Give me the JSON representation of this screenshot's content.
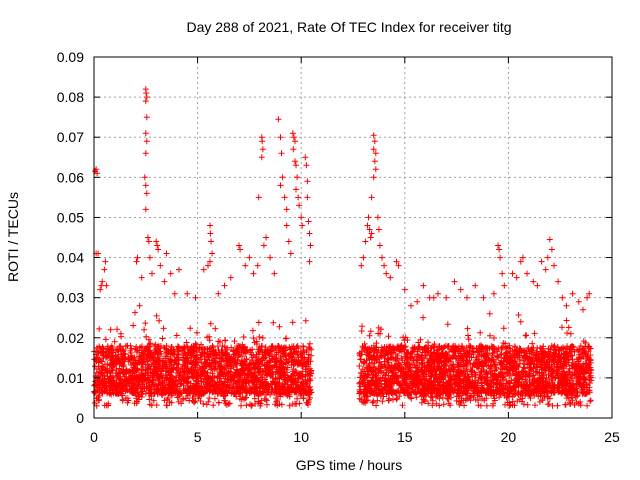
{
  "chart_data": {
    "type": "scatter",
    "title": "Day 288 of 2021, Rate Of TEC Index for receiver titg",
    "xlabel": "GPS time / hours",
    "ylabel": "ROTI / TECUs",
    "xlim": [
      0,
      25
    ],
    "ylim": [
      0,
      0.09
    ],
    "xticks": [
      0,
      5,
      10,
      15,
      20,
      25
    ],
    "yticks": [
      0,
      0.01,
      0.02,
      0.03,
      0.04,
      0.05,
      0.06,
      0.07,
      0.08,
      0.09
    ],
    "xtick_labels": [
      "0",
      "5",
      "10",
      "15",
      "20",
      "25"
    ],
    "ytick_labels": [
      "0",
      "0.01",
      "0.02",
      "0.03",
      "0.04",
      "0.05",
      "0.06",
      "0.07",
      "0.08",
      "0.09"
    ],
    "grid": true,
    "marker": "+",
    "color": "#ff0000",
    "series": [
      {
        "segments": [
          [
            0,
            10.5
          ],
          [
            12.8,
            24
          ]
        ],
        "band": {
          "base_low": 0.006,
          "base_high": 0.018,
          "floor": 0.003
        },
        "points": [
          [
            0.05,
            0.0615
          ],
          [
            0.1,
            0.062
          ],
          [
            0.15,
            0.061
          ],
          [
            0.1,
            0.041
          ],
          [
            0.2,
            0.041
          ],
          [
            0.3,
            0.032
          ],
          [
            0.35,
            0.033
          ],
          [
            0.4,
            0.034
          ],
          [
            0.5,
            0.037
          ],
          [
            0.55,
            0.039
          ],
          [
            0.6,
            0.033
          ],
          [
            0.8,
            0.022
          ],
          [
            1.0,
            0.019
          ],
          [
            1.3,
            0.021
          ],
          [
            1.6,
            0.018
          ],
          [
            2.05,
            0.039
          ],
          [
            2.1,
            0.04
          ],
          [
            2.2,
            0.028
          ],
          [
            2.3,
            0.035
          ],
          [
            2.5,
            0.082
          ],
          [
            2.52,
            0.081
          ],
          [
            2.55,
            0.08
          ],
          [
            2.5,
            0.079
          ],
          [
            2.55,
            0.075
          ],
          [
            2.5,
            0.071
          ],
          [
            2.55,
            0.069
          ],
          [
            2.5,
            0.066
          ],
          [
            2.45,
            0.06
          ],
          [
            2.5,
            0.058
          ],
          [
            2.55,
            0.056
          ],
          [
            2.5,
            0.052
          ],
          [
            2.6,
            0.045
          ],
          [
            2.65,
            0.044
          ],
          [
            2.7,
            0.04
          ],
          [
            2.8,
            0.036
          ],
          [
            3.0,
            0.044
          ],
          [
            3.05,
            0.043
          ],
          [
            3.1,
            0.042
          ],
          [
            3.2,
            0.038
          ],
          [
            3.4,
            0.034
          ],
          [
            3.5,
            0.041
          ],
          [
            3.7,
            0.036
          ],
          [
            3.9,
            0.031
          ],
          [
            4.1,
            0.037
          ],
          [
            4.5,
            0.031
          ],
          [
            4.9,
            0.03
          ],
          [
            5.3,
            0.037
          ],
          [
            5.5,
            0.038
          ],
          [
            5.6,
            0.048
          ],
          [
            5.62,
            0.046
          ],
          [
            5.65,
            0.044
          ],
          [
            5.7,
            0.041
          ],
          [
            5.6,
            0.039
          ],
          [
            6.0,
            0.031
          ],
          [
            6.3,
            0.033
          ],
          [
            6.6,
            0.035
          ],
          [
            7.0,
            0.043
          ],
          [
            7.05,
            0.042
          ],
          [
            7.3,
            0.038
          ],
          [
            7.5,
            0.04
          ],
          [
            7.7,
            0.036
          ],
          [
            7.9,
            0.038
          ],
          [
            7.95,
            0.055
          ],
          [
            8.1,
            0.07
          ],
          [
            8.12,
            0.069
          ],
          [
            8.15,
            0.067
          ],
          [
            8.1,
            0.065
          ],
          [
            8.2,
            0.043
          ],
          [
            8.3,
            0.045
          ],
          [
            8.5,
            0.04
          ],
          [
            8.7,
            0.036
          ],
          [
            8.9,
            0.0745
          ],
          [
            9.0,
            0.07
          ],
          [
            9.05,
            0.066
          ],
          [
            9.1,
            0.06
          ],
          [
            9.0,
            0.058
          ],
          [
            9.2,
            0.055
          ],
          [
            9.3,
            0.052
          ],
          [
            9.3,
            0.048
          ],
          [
            9.4,
            0.044
          ],
          [
            9.5,
            0.041
          ],
          [
            9.6,
            0.071
          ],
          [
            9.65,
            0.07
          ],
          [
            9.7,
            0.069
          ],
          [
            9.62,
            0.067
          ],
          [
            9.7,
            0.064
          ],
          [
            9.75,
            0.063
          ],
          [
            9.8,
            0.06
          ],
          [
            9.75,
            0.057
          ],
          [
            9.85,
            0.055
          ],
          [
            9.9,
            0.053
          ],
          [
            10.0,
            0.05
          ],
          [
            10.05,
            0.048
          ],
          [
            10.2,
            0.065
          ],
          [
            10.25,
            0.063
          ],
          [
            10.3,
            0.059
          ],
          [
            10.3,
            0.055
          ],
          [
            10.35,
            0.049
          ],
          [
            10.4,
            0.046
          ],
          [
            10.45,
            0.043
          ],
          [
            10.4,
            0.039
          ],
          [
            12.9,
            0.038
          ],
          [
            13.0,
            0.04
          ],
          [
            13.1,
            0.044
          ],
          [
            13.2,
            0.048
          ],
          [
            13.25,
            0.05
          ],
          [
            13.3,
            0.047
          ],
          [
            13.35,
            0.045
          ],
          [
            13.4,
            0.046
          ],
          [
            13.4,
            0.055
          ],
          [
            13.5,
            0.0705
          ],
          [
            13.55,
            0.069
          ],
          [
            13.5,
            0.067
          ],
          [
            13.6,
            0.066
          ],
          [
            13.55,
            0.064
          ],
          [
            13.6,
            0.062
          ],
          [
            13.5,
            0.06
          ],
          [
            13.7,
            0.05
          ],
          [
            13.75,
            0.047
          ],
          [
            13.8,
            0.043
          ],
          [
            13.9,
            0.04
          ],
          [
            14.0,
            0.038
          ],
          [
            14.1,
            0.036
          ],
          [
            14.3,
            0.035
          ],
          [
            14.6,
            0.039
          ],
          [
            14.7,
            0.038
          ],
          [
            15.0,
            0.032
          ],
          [
            15.3,
            0.028
          ],
          [
            15.6,
            0.029
          ],
          [
            15.9,
            0.033
          ],
          [
            16.2,
            0.03
          ],
          [
            16.4,
            0.03
          ],
          [
            16.6,
            0.031
          ],
          [
            17.0,
            0.03
          ],
          [
            17.4,
            0.034
          ],
          [
            17.7,
            0.032
          ],
          [
            18.0,
            0.03
          ],
          [
            18.4,
            0.033
          ],
          [
            18.8,
            0.03
          ],
          [
            19.1,
            0.026
          ],
          [
            19.3,
            0.031
          ],
          [
            19.5,
            0.043
          ],
          [
            19.55,
            0.042
          ],
          [
            19.6,
            0.04
          ],
          [
            19.7,
            0.036
          ],
          [
            19.8,
            0.033
          ],
          [
            20.2,
            0.036
          ],
          [
            20.4,
            0.035
          ],
          [
            20.6,
            0.039
          ],
          [
            20.7,
            0.04
          ],
          [
            20.9,
            0.036
          ],
          [
            21.2,
            0.034
          ],
          [
            21.4,
            0.033
          ],
          [
            21.6,
            0.039
          ],
          [
            21.8,
            0.037
          ],
          [
            21.9,
            0.04
          ],
          [
            22.0,
            0.0445
          ],
          [
            22.1,
            0.042
          ],
          [
            22.2,
            0.038
          ],
          [
            22.4,
            0.034
          ],
          [
            22.6,
            0.03
          ],
          [
            22.8,
            0.028
          ],
          [
            23.1,
            0.031
          ],
          [
            23.4,
            0.029
          ],
          [
            23.6,
            0.027
          ],
          [
            23.8,
            0.03
          ],
          [
            23.9,
            0.031
          ]
        ]
      }
    ]
  }
}
